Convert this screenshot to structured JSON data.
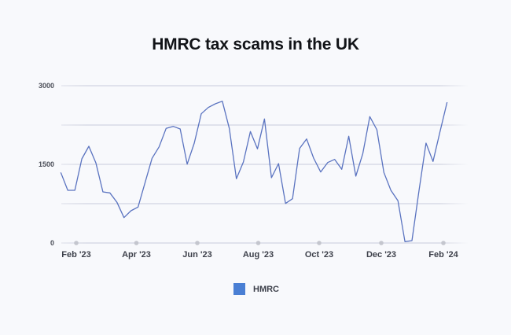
{
  "title": "HMRC tax scams in the UK",
  "legend": {
    "label": "HMRC",
    "color": "#4a7fd4"
  },
  "colors": {
    "line": "#5a73c0",
    "grid": "#c9ccdb",
    "tick_dot": "#c4c6ce",
    "background": "#f8f9fc"
  },
  "chart_data": {
    "type": "line",
    "title": "HMRC tax scams in the UK",
    "xlabel": "",
    "ylabel": "",
    "ylim": [
      0,
      3000
    ],
    "yticks": [
      0,
      1500,
      3000
    ],
    "ygrid": [
      0,
      750,
      1500,
      2250,
      3000
    ],
    "grid": true,
    "legend_position": "bottom",
    "frequency": "weekly",
    "xtick_labels": [
      "Feb '23",
      "Apr '23",
      "Jun '23",
      "Aug '23",
      "Oct '23",
      "Dec '23",
      "Feb '24"
    ],
    "series": [
      {
        "name": "HMRC",
        "values": [
          1345,
          1005,
          1005,
          1605,
          1845,
          1525,
          975,
          955,
          775,
          485,
          615,
          685,
          1150,
          1615,
          1835,
          2185,
          2225,
          2175,
          1505,
          1905,
          2465,
          2585,
          2655,
          2705,
          2185,
          1225,
          1545,
          2125,
          1795,
          2365,
          1245,
          1515,
          755,
          845,
          1805,
          1985,
          1620,
          1355,
          1535,
          1595,
          1405,
          2035,
          1275,
          1705,
          2410,
          2160,
          1345,
          1005,
          805,
          25,
          45,
          1000,
          1905,
          1555,
          2130,
          2685
        ]
      }
    ]
  }
}
